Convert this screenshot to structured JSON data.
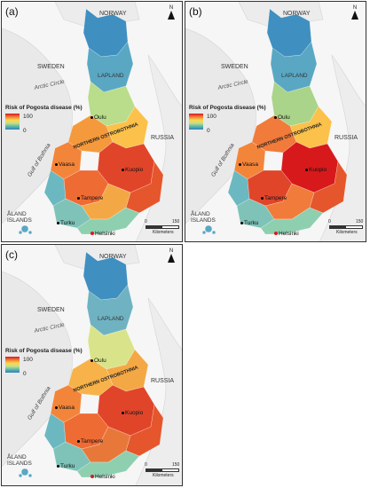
{
  "panels": [
    {
      "label": "(a)"
    },
    {
      "label": "(b)"
    },
    {
      "label": "(c)"
    }
  ],
  "north_label": "N",
  "legend": {
    "title": "Risk of Pogosta disease (%)",
    "max": "100",
    "min": "0"
  },
  "places": {
    "norway": "NORWAY",
    "sweden": "SWEDEN",
    "lapland": "LAPLAND",
    "arctic": "Arctic Circle",
    "russia": "RUSSIA",
    "gulf": "Gulf of Bothnia",
    "aland": "ÅLAND\nISLANDS",
    "north_ost": "NORTHERN OSTROBOTHNIA"
  },
  "cities": {
    "oulu": "Oulu",
    "vaasa": "Vaasa",
    "kuopio": "Kuopio",
    "tampere": "Tampere",
    "turku": "Turku",
    "helsinki": "Helsinki"
  },
  "scale": {
    "zero": "0",
    "max": "150",
    "unit": "Kilometers"
  },
  "colors": {
    "high": "#d7191c",
    "midhigh": "#f07b3a",
    "mid": "#fdd54a",
    "midlow": "#c6e08a",
    "low": "#5fb8a8",
    "lowest": "#2f7fbf"
  }
}
